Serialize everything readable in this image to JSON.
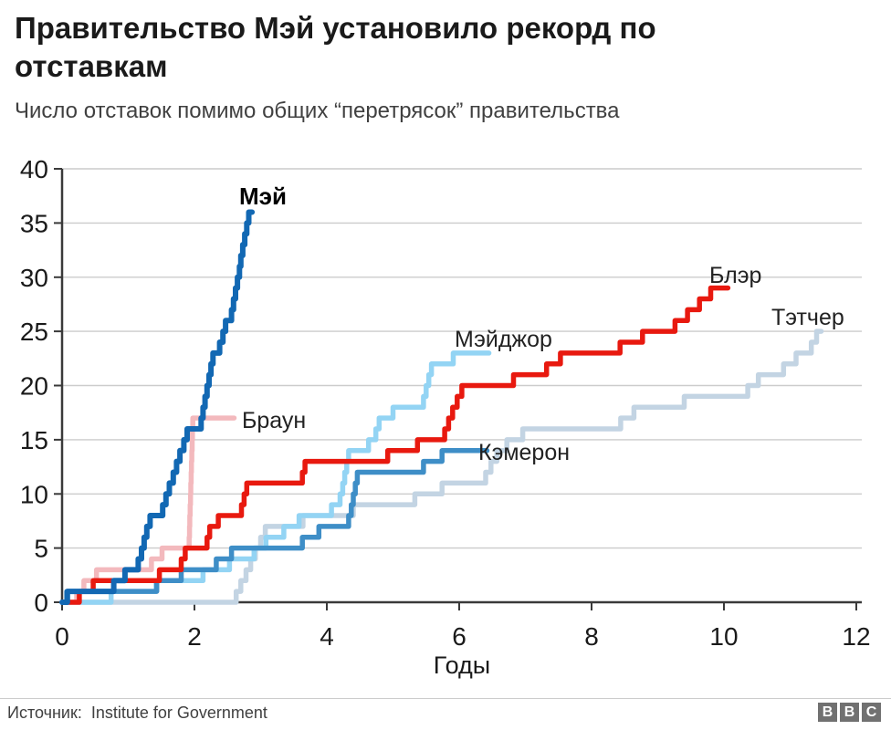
{
  "header": {
    "title_line1": "Правительство Мэй установило рекорд по",
    "title_line2": "отставкам",
    "subtitle": "Число отставок помимо общих “перетрясок” правительства"
  },
  "footer": {
    "source_label": "Источник:",
    "source_value": "Institute for Government",
    "logo_letters": [
      "B",
      "B",
      "C"
    ]
  },
  "colors": {
    "grid": "#cccccc",
    "axis": "#3a3a3a",
    "tick_text": "#1a1a1a",
    "may_blue": "#1268b3",
    "brown_pink": "#f3b9bd",
    "blair_red": "#e8190f",
    "major_lightblue": "#93d4f4",
    "cameron_blue": "#3e8ec7",
    "thatcher_grey": "#c3d4e3"
  },
  "chart_data": {
    "type": "line",
    "title": "Правительство Мэй установило рекорд по отставкам",
    "subtitle": "Число отставок помимо общих “перетрясок” правительства",
    "xlabel": "Годы",
    "ylabel": "",
    "xlim": [
      0,
      12
    ],
    "ylim": [
      0,
      40
    ],
    "xticks": [
      0,
      2,
      4,
      6,
      8,
      10,
      12
    ],
    "yticks": [
      0,
      5,
      10,
      15,
      20,
      25,
      30,
      35,
      40
    ],
    "grid": true,
    "grid_color": "#cccccc",
    "axis_color": "#3a3a3a",
    "legend_position": "inline-labels",
    "series": [
      {
        "id": "thatcher",
        "name": "Тэтчер",
        "color": "#c3d4e3",
        "width": 5.5,
        "end_x": 11.47,
        "steps": [
          [
            0,
            0
          ],
          [
            2.63,
            1
          ],
          [
            2.7,
            2
          ],
          [
            2.78,
            3
          ],
          [
            2.85,
            4
          ],
          [
            2.92,
            5
          ],
          [
            3.0,
            6
          ],
          [
            3.07,
            7
          ],
          [
            3.64,
            8
          ],
          [
            4.4,
            9
          ],
          [
            5.33,
            10
          ],
          [
            5.74,
            11
          ],
          [
            6.4,
            12
          ],
          [
            6.48,
            13
          ],
          [
            6.57,
            14
          ],
          [
            6.72,
            15
          ],
          [
            6.96,
            16
          ],
          [
            8.44,
            17
          ],
          [
            8.64,
            18
          ],
          [
            9.4,
            19
          ],
          [
            10.36,
            20
          ],
          [
            10.52,
            21
          ],
          [
            10.9,
            22
          ],
          [
            11.09,
            23
          ],
          [
            11.32,
            24
          ],
          [
            11.4,
            25
          ]
        ]
      },
      {
        "id": "major",
        "name": "Мэйджор",
        "color": "#93d4f4",
        "width": 5.5,
        "end_x": 6.45,
        "steps": [
          [
            0,
            0
          ],
          [
            0.74,
            1
          ],
          [
            1.42,
            2
          ],
          [
            2.13,
            3
          ],
          [
            2.53,
            4
          ],
          [
            2.9,
            5
          ],
          [
            3.08,
            6
          ],
          [
            3.35,
            7
          ],
          [
            3.58,
            8
          ],
          [
            4.07,
            9
          ],
          [
            4.2,
            10
          ],
          [
            4.24,
            11
          ],
          [
            4.27,
            12
          ],
          [
            4.3,
            13
          ],
          [
            4.33,
            14
          ],
          [
            4.63,
            15
          ],
          [
            4.74,
            16
          ],
          [
            4.79,
            17
          ],
          [
            5.0,
            18
          ],
          [
            5.46,
            19
          ],
          [
            5.5,
            20
          ],
          [
            5.54,
            21
          ],
          [
            5.58,
            22
          ],
          [
            5.91,
            23
          ]
        ]
      },
      {
        "id": "cameron",
        "name": "Кэмерон",
        "color": "#3e8ec7",
        "width": 5.5,
        "end_x": 6.42,
        "steps": [
          [
            0,
            0
          ],
          [
            0.07,
            1
          ],
          [
            1.43,
            2
          ],
          [
            1.8,
            3
          ],
          [
            2.33,
            4
          ],
          [
            2.56,
            5
          ],
          [
            3.63,
            6
          ],
          [
            3.88,
            7
          ],
          [
            4.33,
            8
          ],
          [
            4.37,
            9
          ],
          [
            4.4,
            10
          ],
          [
            4.43,
            11
          ],
          [
            4.46,
            12
          ],
          [
            5.46,
            13
          ],
          [
            5.74,
            14
          ]
        ]
      },
      {
        "id": "brown",
        "name": "Браун",
        "color": "#f3b9bd",
        "width": 5.5,
        "end_x": 2.6,
        "steps": [
          [
            0.12,
            0
          ],
          [
            0.22,
            1
          ],
          [
            0.33,
            2
          ],
          [
            0.52,
            3
          ],
          [
            1.35,
            4
          ],
          [
            1.51,
            5
          ],
          [
            1.92,
            6
          ],
          [
            1.925,
            7
          ],
          [
            1.93,
            8
          ],
          [
            1.935,
            9
          ],
          [
            1.94,
            10
          ],
          [
            1.945,
            11
          ],
          [
            1.95,
            12
          ],
          [
            1.955,
            13
          ],
          [
            1.96,
            14
          ],
          [
            1.965,
            15
          ],
          [
            1.97,
            16
          ],
          [
            1.975,
            17
          ]
        ]
      },
      {
        "id": "blair",
        "name": "Блэр",
        "color": "#e8190f",
        "width": 5.5,
        "end_x": 10.06,
        "steps": [
          [
            0,
            0
          ],
          [
            0.26,
            1
          ],
          [
            0.47,
            2
          ],
          [
            1.47,
            3
          ],
          [
            1.8,
            4
          ],
          [
            1.86,
            5
          ],
          [
            2.19,
            6
          ],
          [
            2.23,
            7
          ],
          [
            2.36,
            8
          ],
          [
            2.71,
            9
          ],
          [
            2.75,
            10
          ],
          [
            2.79,
            11
          ],
          [
            3.63,
            12
          ],
          [
            3.67,
            13
          ],
          [
            4.92,
            14
          ],
          [
            5.37,
            15
          ],
          [
            5.78,
            16
          ],
          [
            5.84,
            17
          ],
          [
            5.9,
            18
          ],
          [
            5.97,
            19
          ],
          [
            6.04,
            20
          ],
          [
            6.82,
            21
          ],
          [
            7.32,
            22
          ],
          [
            7.53,
            23
          ],
          [
            8.43,
            24
          ],
          [
            8.77,
            25
          ],
          [
            9.26,
            26
          ],
          [
            9.45,
            27
          ],
          [
            9.63,
            28
          ],
          [
            9.8,
            29
          ]
        ]
      },
      {
        "id": "may",
        "name": "Мэй",
        "color": "#1268b3",
        "width": 6,
        "label_bold": true,
        "end_x": 2.87,
        "steps": [
          [
            0,
            0
          ],
          [
            0.08,
            1
          ],
          [
            0.78,
            2
          ],
          [
            0.95,
            3
          ],
          [
            1.15,
            4
          ],
          [
            1.2,
            5
          ],
          [
            1.24,
            6
          ],
          [
            1.28,
            7
          ],
          [
            1.33,
            8
          ],
          [
            1.52,
            9
          ],
          [
            1.57,
            10
          ],
          [
            1.62,
            11
          ],
          [
            1.68,
            12
          ],
          [
            1.73,
            13
          ],
          [
            1.78,
            14
          ],
          [
            1.84,
            15
          ],
          [
            1.89,
            16
          ],
          [
            2.1,
            17
          ],
          [
            2.13,
            18
          ],
          [
            2.16,
            19
          ],
          [
            2.19,
            20
          ],
          [
            2.22,
            21
          ],
          [
            2.25,
            22
          ],
          [
            2.28,
            23
          ],
          [
            2.38,
            24
          ],
          [
            2.43,
            25
          ],
          [
            2.47,
            26
          ],
          [
            2.56,
            27
          ],
          [
            2.59,
            28
          ],
          [
            2.62,
            29
          ],
          [
            2.65,
            30
          ],
          [
            2.68,
            31
          ],
          [
            2.7,
            32
          ],
          [
            2.73,
            33
          ],
          [
            2.76,
            34
          ],
          [
            2.79,
            35
          ],
          [
            2.82,
            36
          ]
        ]
      }
    ]
  }
}
